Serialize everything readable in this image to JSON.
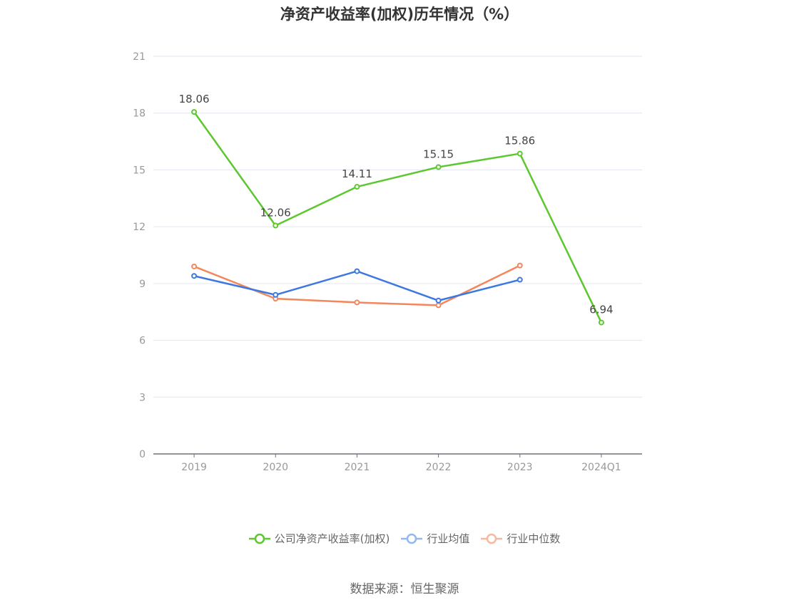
{
  "title": "净资产收益率(加权)历年情况（%）",
  "source": "数据来源：恒生聚源",
  "chart_data": {
    "type": "line",
    "categories": [
      "2019",
      "2020",
      "2021",
      "2022",
      "2023",
      "2024Q1"
    ],
    "ylim": [
      0,
      21
    ],
    "yticks": [
      0,
      3,
      6,
      9,
      12,
      15,
      18,
      21
    ],
    "grid": true,
    "legend_position": "bottom",
    "series": [
      {
        "name": "公司净资产收益率(加权)",
        "color": "#5cc72e",
        "values": [
          18.06,
          12.06,
          14.11,
          15.15,
          15.86,
          6.94
        ],
        "labels": true
      },
      {
        "name": "行业均值",
        "color": "#3d78e0",
        "values": [
          9.4,
          8.4,
          9.65,
          8.1,
          9.2,
          null
        ],
        "labels": false
      },
      {
        "name": "行业中位数",
        "color": "#f3865b",
        "values": [
          9.9,
          8.2,
          8.0,
          7.85,
          9.95,
          null
        ],
        "labels": false
      }
    ],
    "legend_colors": [
      "#5cc72e",
      "#93b7f0",
      "#f8b8a0"
    ]
  }
}
